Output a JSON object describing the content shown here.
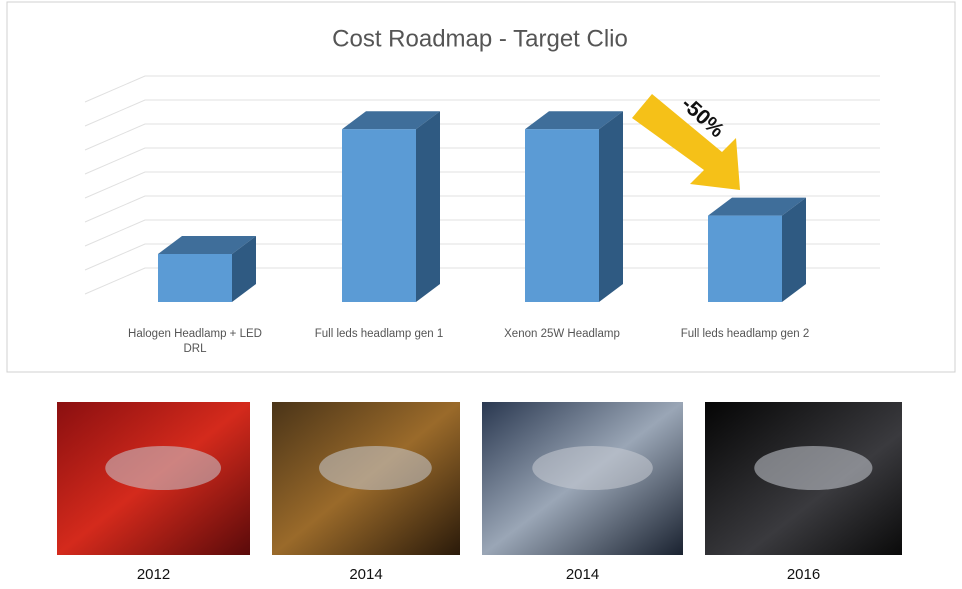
{
  "chart_data": {
    "type": "bar3d",
    "title": "Cost Roadmap - Target Clio",
    "categories": [
      "Halogen Headlamp + LED DRL",
      "Full leds headlamp gen 1",
      "Xenon 25W Headlamp",
      "Full leds headlamp gen 2"
    ],
    "values": [
      2,
      7.2,
      7.2,
      3.6
    ],
    "color": "#5b9bd5",
    "ylim": [
      0,
      8
    ],
    "yticks": [
      0,
      1,
      2,
      3,
      4,
      5,
      6,
      7,
      8
    ],
    "grid": true,
    "annotation": "-50%"
  },
  "photos": [
    {
      "year": "2012"
    },
    {
      "year": "2014"
    },
    {
      "year": "2014"
    },
    {
      "year": "2016"
    }
  ]
}
